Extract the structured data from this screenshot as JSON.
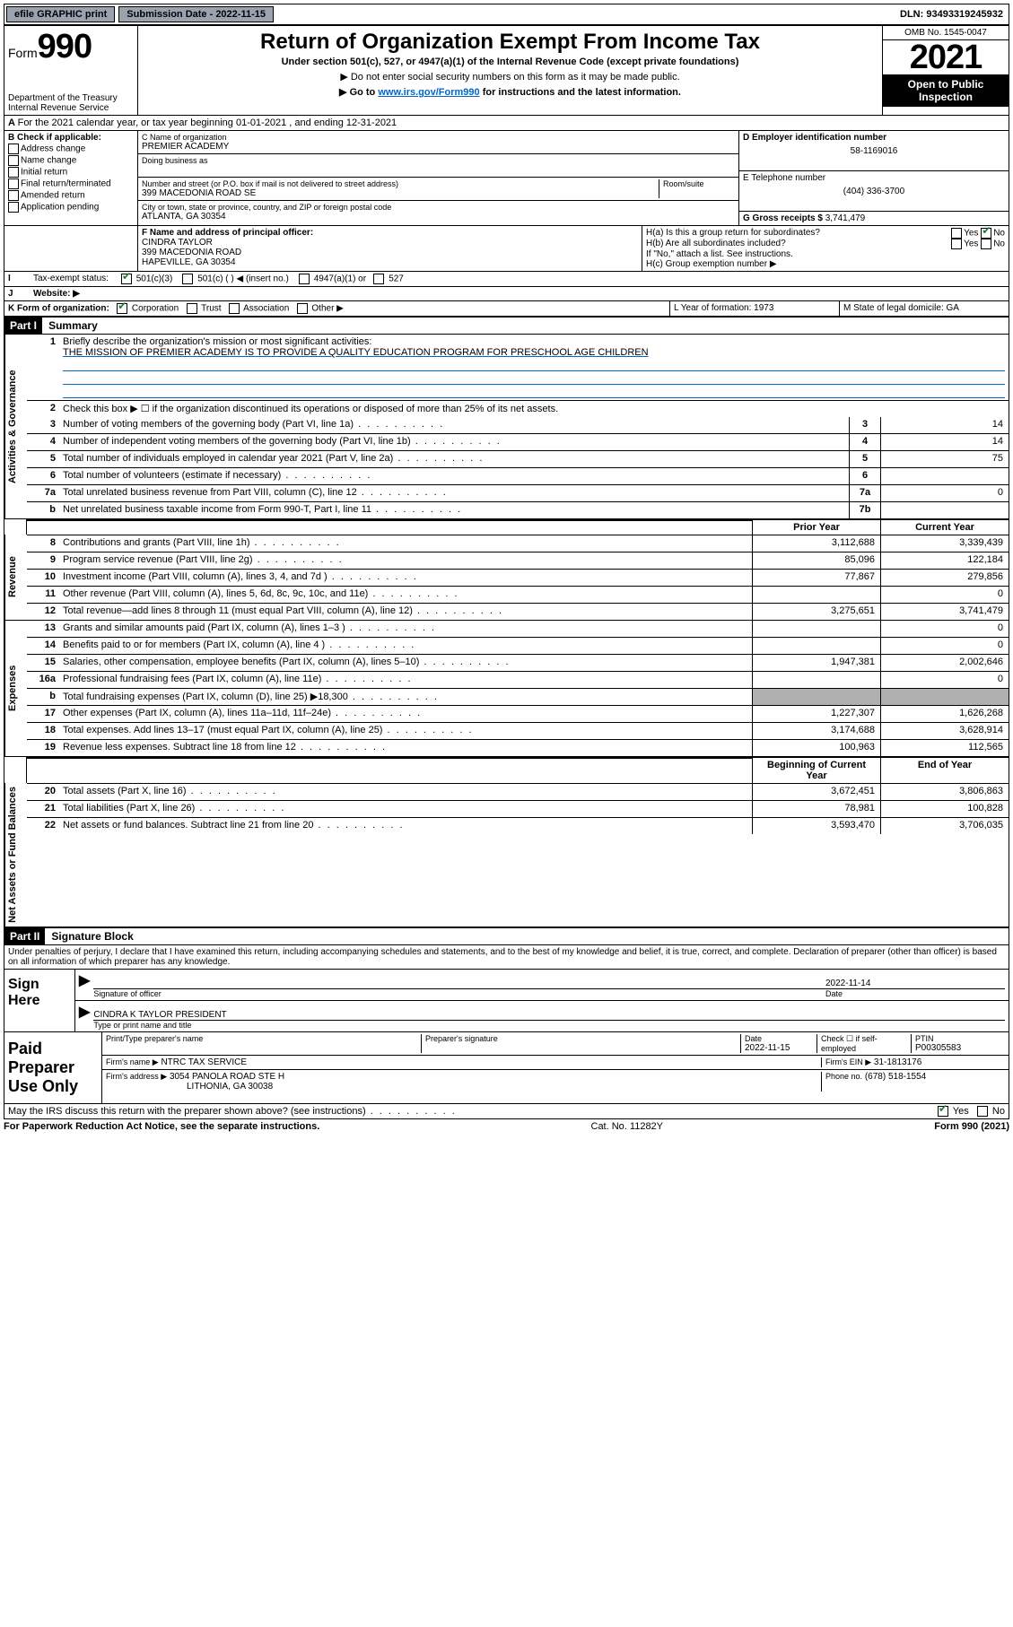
{
  "top": {
    "efile": "efile GRAPHIC print",
    "submission_label": "Submission Date - 2022-11-15",
    "dln": "DLN: 93493319245932"
  },
  "header": {
    "form_prefix": "Form",
    "form_number": "990",
    "dept": "Department of the Treasury",
    "irs": "Internal Revenue Service",
    "title": "Return of Organization Exempt From Income Tax",
    "subtitle": "Under section 501(c), 527, or 4947(a)(1) of the Internal Revenue Code (except private foundations)",
    "note1": "▶ Do not enter social security numbers on this form as it may be made public.",
    "note2_pre": "▶ Go to ",
    "note2_link": "www.irs.gov/Form990",
    "note2_post": " for instructions and the latest information.",
    "omb": "OMB No. 1545-0047",
    "year": "2021",
    "open": "Open to Public Inspection"
  },
  "rowA": "For the 2021 calendar year, or tax year beginning 01-01-2021    , and ending 12-31-2021",
  "boxB": {
    "label": "B Check if applicable:",
    "opts": [
      "Address change",
      "Name change",
      "Initial return",
      "Final return/terminated",
      "Amended return",
      "Application pending"
    ]
  },
  "boxC": {
    "name_label": "C Name of organization",
    "name": "PREMIER ACADEMY",
    "dba_label": "Doing business as",
    "street_label": "Number and street (or P.O. box if mail is not delivered to street address)",
    "room_label": "Room/suite",
    "street": "399 MACEDONIA ROAD SE",
    "city_label": "City or town, state or province, country, and ZIP or foreign postal code",
    "city": "ATLANTA, GA  30354"
  },
  "boxD": {
    "label": "D Employer identification number",
    "val": "58-1169016"
  },
  "boxE": {
    "label": "E Telephone number",
    "val": "(404) 336-3700"
  },
  "boxG": {
    "label": "G Gross receipts $",
    "val": "3,741,479"
  },
  "boxF": {
    "label": "F Name and address of principal officer:",
    "name": "CINDRA TAYLOR",
    "addr1": "399 MACEDONIA ROAD",
    "addr2": "HAPEVILLE, GA  30354"
  },
  "boxH": {
    "a": "H(a)  Is this a group return for subordinates?",
    "b": "H(b)  Are all subordinates included?",
    "note": "If \"No,\" attach a list. See instructions.",
    "c": "H(c)  Group exemption number ▶"
  },
  "rowI": {
    "label": "Tax-exempt status:",
    "opts": [
      "501(c)(3)",
      "501(c) (  ) ◀ (insert no.)",
      "4947(a)(1) or",
      "527"
    ]
  },
  "rowJ": "Website: ▶",
  "rowK": {
    "label": "K Form of organization:",
    "opts": [
      "Corporation",
      "Trust",
      "Association",
      "Other ▶"
    ],
    "L": "L Year of formation: 1973",
    "M": "M State of legal domicile: GA"
  },
  "part1": {
    "header": "Part I",
    "title": "Summary",
    "q1": "Briefly describe the organization's mission or most significant activities:",
    "mission": "THE MISSION OF PREMIER ACADEMY IS TO PROVIDE A QUALITY EDUCATION PROGRAM FOR PRESCHOOL AGE CHILDREN",
    "q2": "Check this box ▶ ☐  if the organization discontinued its operations or disposed of more than 25% of its net assets.",
    "lines_gov": [
      {
        "n": "3",
        "t": "Number of voting members of the governing body (Part VI, line 1a)",
        "box": "3",
        "v": "14"
      },
      {
        "n": "4",
        "t": "Number of independent voting members of the governing body (Part VI, line 1b)",
        "box": "4",
        "v": "14"
      },
      {
        "n": "5",
        "t": "Total number of individuals employed in calendar year 2021 (Part V, line 2a)",
        "box": "5",
        "v": "75"
      },
      {
        "n": "6",
        "t": "Total number of volunteers (estimate if necessary)",
        "box": "6",
        "v": ""
      },
      {
        "n": "7a",
        "t": "Total unrelated business revenue from Part VIII, column (C), line 12",
        "box": "7a",
        "v": "0"
      },
      {
        "n": "b",
        "t": "Net unrelated business taxable income from Form 990-T, Part I, line 11",
        "box": "7b",
        "v": ""
      }
    ],
    "col_prior": "Prior Year",
    "col_curr": "Current Year",
    "revenue": [
      {
        "n": "8",
        "t": "Contributions and grants (Part VIII, line 1h)",
        "p": "3,112,688",
        "c": "3,339,439"
      },
      {
        "n": "9",
        "t": "Program service revenue (Part VIII, line 2g)",
        "p": "85,096",
        "c": "122,184"
      },
      {
        "n": "10",
        "t": "Investment income (Part VIII, column (A), lines 3, 4, and 7d )",
        "p": "77,867",
        "c": "279,856"
      },
      {
        "n": "11",
        "t": "Other revenue (Part VIII, column (A), lines 5, 6d, 8c, 9c, 10c, and 11e)",
        "p": "",
        "c": "0"
      },
      {
        "n": "12",
        "t": "Total revenue—add lines 8 through 11 (must equal Part VIII, column (A), line 12)",
        "p": "3,275,651",
        "c": "3,741,479"
      }
    ],
    "expenses": [
      {
        "n": "13",
        "t": "Grants and similar amounts paid (Part IX, column (A), lines 1–3 )",
        "p": "",
        "c": "0"
      },
      {
        "n": "14",
        "t": "Benefits paid to or for members (Part IX, column (A), line 4 )",
        "p": "",
        "c": "0"
      },
      {
        "n": "15",
        "t": "Salaries, other compensation, employee benefits (Part IX, column (A), lines 5–10)",
        "p": "1,947,381",
        "c": "2,002,646"
      },
      {
        "n": "16a",
        "t": "Professional fundraising fees (Part IX, column (A), line 11e)",
        "p": "",
        "c": "0"
      },
      {
        "n": "b",
        "t": "Total fundraising expenses (Part IX, column (D), line 25) ▶18,300",
        "p": "SHADE",
        "c": "SHADE"
      },
      {
        "n": "17",
        "t": "Other expenses (Part IX, column (A), lines 11a–11d, 11f–24e)",
        "p": "1,227,307",
        "c": "1,626,268"
      },
      {
        "n": "18",
        "t": "Total expenses. Add lines 13–17 (must equal Part IX, column (A), line 25)",
        "p": "3,174,688",
        "c": "3,628,914"
      },
      {
        "n": "19",
        "t": "Revenue less expenses. Subtract line 18 from line 12",
        "p": "100,963",
        "c": "112,565"
      }
    ],
    "col_begin": "Beginning of Current Year",
    "col_end": "End of Year",
    "assets": [
      {
        "n": "20",
        "t": "Total assets (Part X, line 16)",
        "p": "3,672,451",
        "c": "3,806,863"
      },
      {
        "n": "21",
        "t": "Total liabilities (Part X, line 26)",
        "p": "78,981",
        "c": "100,828"
      },
      {
        "n": "22",
        "t": "Net assets or fund balances. Subtract line 21 from line 20",
        "p": "3,593,470",
        "c": "3,706,035"
      }
    ]
  },
  "part2": {
    "header": "Part II",
    "title": "Signature Block",
    "decl": "Under penalties of perjury, I declare that I have examined this return, including accompanying schedules and statements, and to the best of my knowledge and belief, it is true, correct, and complete. Declaration of preparer (other than officer) is based on all information of which preparer has any knowledge."
  },
  "sign": {
    "left": "Sign Here",
    "sig_label": "Signature of officer",
    "date": "2022-11-14",
    "date_label": "Date",
    "name": "CINDRA K TAYLOR  PRESIDENT",
    "name_label": "Type or print name and title"
  },
  "paid": {
    "left": "Paid Preparer Use Only",
    "h1": "Print/Type preparer's name",
    "h2": "Preparer's signature",
    "h3": "Date",
    "date": "2022-11-15",
    "h4": "Check ☐ if self-employed",
    "h5": "PTIN",
    "ptin": "P00305583",
    "firm_label": "Firm's name    ▶",
    "firm": "NTRC TAX SERVICE",
    "ein_label": "Firm's EIN ▶",
    "ein": "31-1813176",
    "addr_label": "Firm's address ▶",
    "addr1": "3054 PANOLA ROAD STE H",
    "addr2": "LITHONIA, GA  30038",
    "phone_label": "Phone no.",
    "phone": "(678) 518-1554"
  },
  "discuss": "May the IRS discuss this return with the preparer shown above? (see instructions)",
  "footer": {
    "left": "For Paperwork Reduction Act Notice, see the separate instructions.",
    "mid": "Cat. No. 11282Y",
    "right": "Form 990 (2021)"
  },
  "labels": {
    "gov": "Activities & Governance",
    "rev": "Revenue",
    "exp": "Expenses",
    "net": "Net Assets or Fund Balances"
  }
}
